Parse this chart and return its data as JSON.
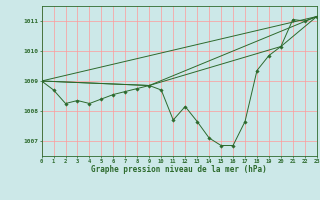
{
  "bg_color": "#cce8e8",
  "grid_color": "#ff9999",
  "line_color": "#2d6a2d",
  "marker_color": "#2d6a2d",
  "xlabel": "Graphe pression niveau de la mer (hPa)",
  "xlim": [
    0,
    23
  ],
  "ylim": [
    1006.5,
    1011.5
  ],
  "yticks": [
    1007,
    1008,
    1009,
    1010,
    1011
  ],
  "xticks": [
    0,
    1,
    2,
    3,
    4,
    5,
    6,
    7,
    8,
    9,
    10,
    11,
    12,
    13,
    14,
    15,
    16,
    17,
    18,
    19,
    20,
    21,
    22,
    23
  ],
  "series1": {
    "x": [
      0,
      1,
      2,
      3,
      4,
      5,
      6,
      7,
      8,
      9,
      10,
      11,
      12,
      13,
      14,
      15,
      16,
      17,
      18,
      19,
      20,
      21,
      22,
      23
    ],
    "y": [
      1009.0,
      1008.7,
      1008.25,
      1008.35,
      1008.25,
      1008.4,
      1008.55,
      1008.65,
      1008.75,
      1008.85,
      1008.7,
      1007.7,
      1008.15,
      1007.65,
      1007.1,
      1006.85,
      1006.85,
      1007.65,
      1009.35,
      1009.85,
      1010.15,
      1011.05,
      1011.0,
      1011.15
    ]
  },
  "series2": {
    "x": [
      0,
      23
    ],
    "y": [
      1009.0,
      1011.15
    ]
  },
  "series3": {
    "x": [
      0,
      9,
      23
    ],
    "y": [
      1009.0,
      1008.85,
      1011.15
    ]
  },
  "series4": {
    "x": [
      0,
      9,
      20,
      23
    ],
    "y": [
      1009.0,
      1008.85,
      1010.15,
      1011.15
    ]
  }
}
